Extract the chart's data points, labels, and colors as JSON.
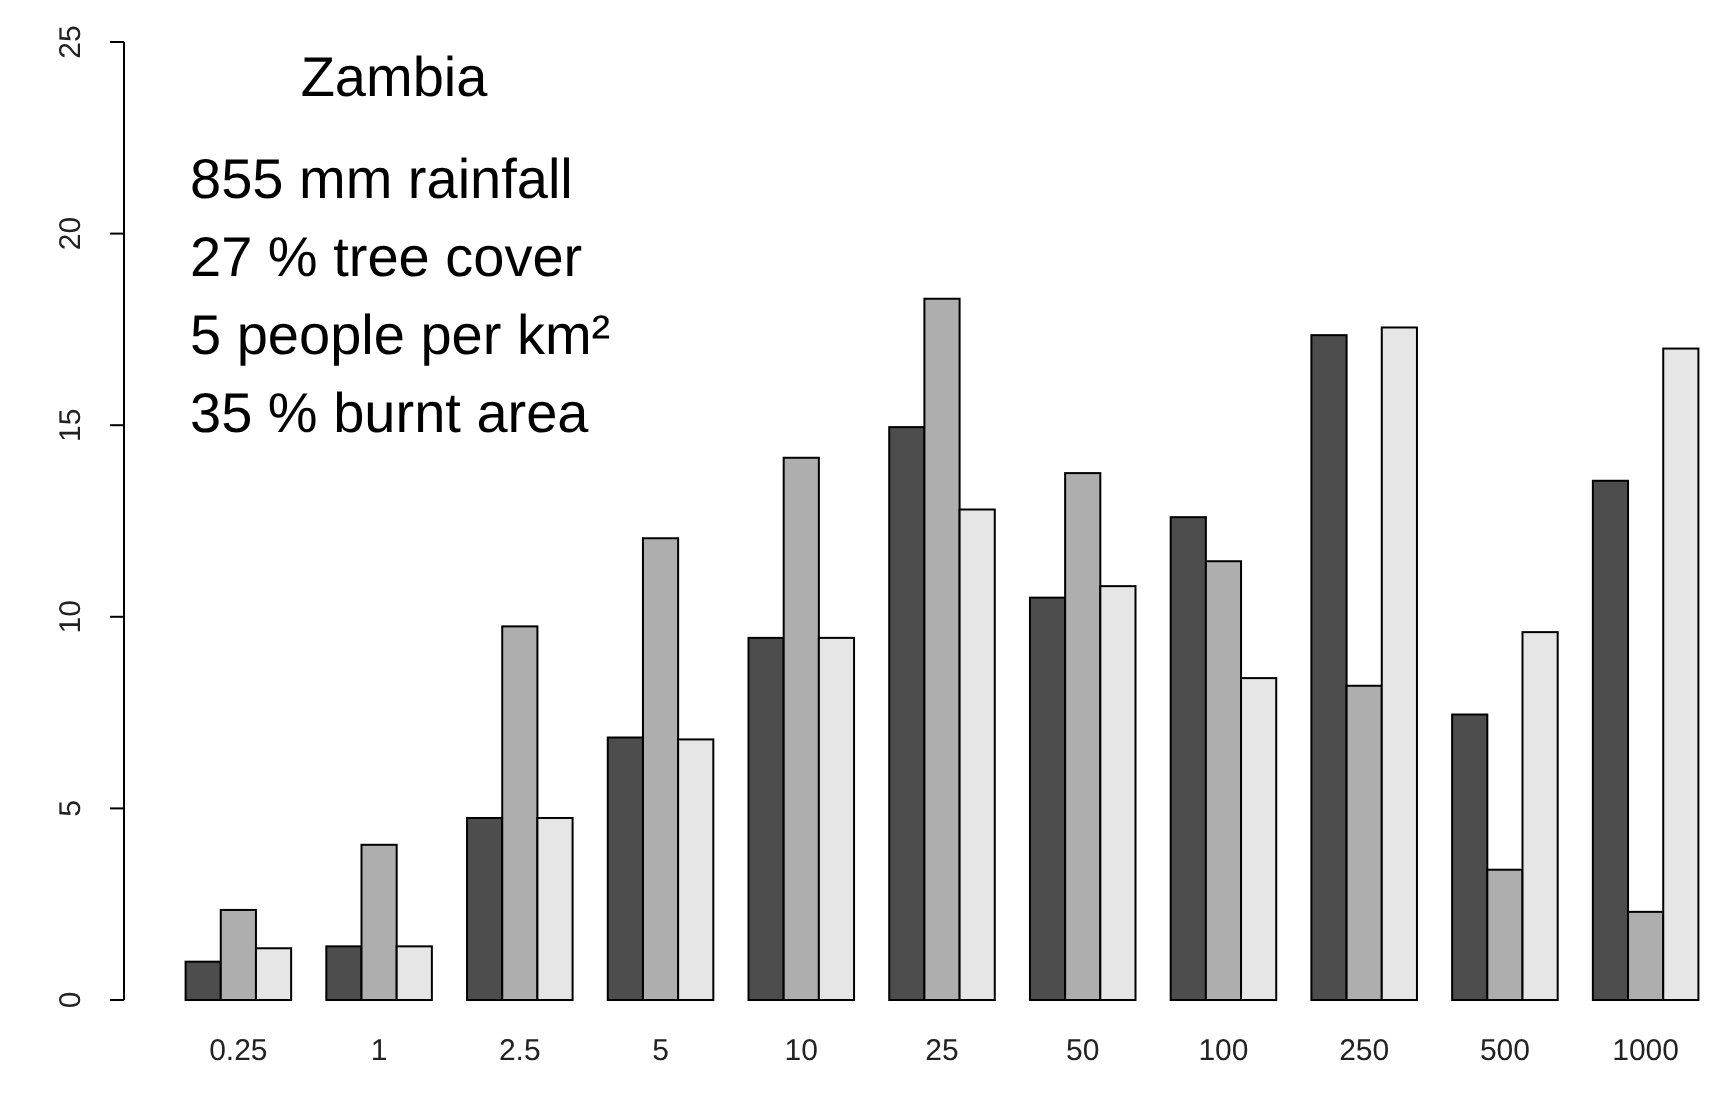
{
  "chart_data": {
    "type": "bar",
    "title": "Zambia",
    "annotations": [
      "855 mm rainfall",
      "27 % tree cover",
      "5 people per km²",
      "35 % burnt area"
    ],
    "categories": [
      "0.25",
      "1",
      "2.5",
      "5",
      "10",
      "25",
      "50",
      "100",
      "250",
      "500",
      "1000"
    ],
    "series": [
      {
        "color": "#4d4d4d",
        "values": [
          1.0,
          1.4,
          4.75,
          6.85,
          9.45,
          14.95,
          10.5,
          12.6,
          17.35,
          7.45,
          13.55
        ]
      },
      {
        "color": "#aeaeae",
        "values": [
          2.35,
          4.05,
          9.75,
          12.05,
          14.15,
          18.3,
          13.75,
          11.45,
          8.2,
          3.4,
          2.3
        ]
      },
      {
        "color": "#e6e6e6",
        "values": [
          1.35,
          1.4,
          4.75,
          6.8,
          9.45,
          12.8,
          10.8,
          8.4,
          17.55,
          9.6,
          17.0
        ]
      }
    ],
    "ylim": [
      0,
      25
    ],
    "yticks": [
      0,
      5,
      10,
      15,
      20,
      25
    ],
    "grid": false
  }
}
